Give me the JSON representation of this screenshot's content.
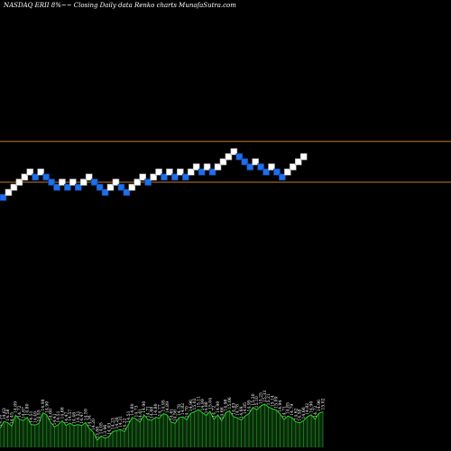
{
  "header": {
    "title": "NASDAQ ERII 8%~~ Closing Daily data Renko charts MunafaSutra.com"
  },
  "colors": {
    "background": "#000000",
    "up_brick": "#ffffff",
    "down_brick": "#1e6fe8",
    "up_brick_border": "#9a9a9a",
    "down_brick_border": "#0b3f9a",
    "reference_line": "#c8782a",
    "volume_fill": "#0a2a0a",
    "volume_line": "#2bd12b",
    "volume_bar": "#1f8a1f"
  },
  "chart_data": {
    "type": "renko",
    "reference_lines": [
      15.02,
      13.98
    ],
    "ylim": [
      8.5,
      18.4
    ],
    "bricks": [
      {
        "price": 13.59,
        "dir": "down"
      },
      {
        "price": 13.72,
        "dir": "up"
      },
      {
        "price": 13.85,
        "dir": "up"
      },
      {
        "price": 13.98,
        "dir": "up"
      },
      {
        "price": 14.11,
        "dir": "up"
      },
      {
        "price": 14.24,
        "dir": "up"
      },
      {
        "price": 14.11,
        "dir": "down"
      },
      {
        "price": 14.24,
        "dir": "up"
      },
      {
        "price": 14.11,
        "dir": "down"
      },
      {
        "price": 13.98,
        "dir": "down"
      },
      {
        "price": 13.85,
        "dir": "down"
      },
      {
        "price": 13.98,
        "dir": "up"
      },
      {
        "price": 13.85,
        "dir": "down"
      },
      {
        "price": 13.98,
        "dir": "up"
      },
      {
        "price": 13.85,
        "dir": "down"
      },
      {
        "price": 13.98,
        "dir": "up"
      },
      {
        "price": 14.11,
        "dir": "up"
      },
      {
        "price": 13.98,
        "dir": "down"
      },
      {
        "price": 13.85,
        "dir": "down"
      },
      {
        "price": 13.72,
        "dir": "down"
      },
      {
        "price": 13.85,
        "dir": "up"
      },
      {
        "price": 13.98,
        "dir": "up"
      },
      {
        "price": 13.85,
        "dir": "down"
      },
      {
        "price": 13.72,
        "dir": "down"
      },
      {
        "price": 13.85,
        "dir": "up"
      },
      {
        "price": 13.98,
        "dir": "up"
      },
      {
        "price": 14.11,
        "dir": "up"
      },
      {
        "price": 13.98,
        "dir": "down"
      },
      {
        "price": 14.11,
        "dir": "up"
      },
      {
        "price": 14.24,
        "dir": "up"
      },
      {
        "price": 14.11,
        "dir": "down"
      },
      {
        "price": 14.24,
        "dir": "up"
      },
      {
        "price": 14.11,
        "dir": "down"
      },
      {
        "price": 14.24,
        "dir": "up"
      },
      {
        "price": 14.11,
        "dir": "down"
      },
      {
        "price": 14.24,
        "dir": "up"
      },
      {
        "price": 14.37,
        "dir": "up"
      },
      {
        "price": 14.24,
        "dir": "down"
      },
      {
        "price": 14.37,
        "dir": "up"
      },
      {
        "price": 14.24,
        "dir": "down"
      },
      {
        "price": 14.37,
        "dir": "up"
      },
      {
        "price": 14.5,
        "dir": "up"
      },
      {
        "price": 14.63,
        "dir": "up"
      },
      {
        "price": 14.76,
        "dir": "up"
      },
      {
        "price": 14.63,
        "dir": "down"
      },
      {
        "price": 14.5,
        "dir": "down"
      },
      {
        "price": 14.37,
        "dir": "down"
      },
      {
        "price": 14.5,
        "dir": "up"
      },
      {
        "price": 14.37,
        "dir": "down"
      },
      {
        "price": 14.24,
        "dir": "down"
      },
      {
        "price": 14.37,
        "dir": "up"
      },
      {
        "price": 14.24,
        "dir": "down"
      },
      {
        "price": 14.11,
        "dir": "down"
      },
      {
        "price": 14.24,
        "dir": "up"
      },
      {
        "price": 14.37,
        "dir": "up"
      },
      {
        "price": 14.5,
        "dir": "up"
      },
      {
        "price": 14.63,
        "dir": "up"
      }
    ],
    "volume_labels": [
      "14.36",
      "14.63",
      "14.58",
      "14.45",
      "14.89",
      "14.72",
      "14.67",
      "14.80",
      "14.51",
      "14.49",
      "14.55",
      "14.98",
      "14.90",
      "14.60",
      "14.41",
      "14.51",
      "14.66",
      "14.47",
      "14.57",
      "14.46",
      "14.51",
      "14.47",
      "14.59",
      "14.34",
      "14.20",
      "13.88",
      "14.05",
      "13.96",
      "14.03",
      "14.23",
      "14.26",
      "14.31",
      "14.22",
      "14.51",
      "14.80",
      "14.73",
      "14.61",
      "14.90",
      "14.71",
      "14.68",
      "14.80",
      "14.77",
      "14.95",
      "14.89",
      "14.61",
      "14.56",
      "14.78",
      "14.82",
      "14.70",
      "14.96",
      "15.02",
      "15.11",
      "14.99",
      "14.88",
      "15.04",
      "14.72",
      "14.90",
      "14.66",
      "14.98",
      "15.06",
      "14.83",
      "14.78",
      "14.69",
      "14.85",
      "14.95",
      "15.20",
      "15.10",
      "15.25",
      "15.33",
      "15.21",
      "15.14",
      "15.09",
      "14.94",
      "14.71",
      "14.85",
      "14.79",
      "14.62",
      "14.58",
      "14.66",
      "14.82",
      "14.90",
      "14.72",
      "14.96",
      "15.02"
    ]
  }
}
